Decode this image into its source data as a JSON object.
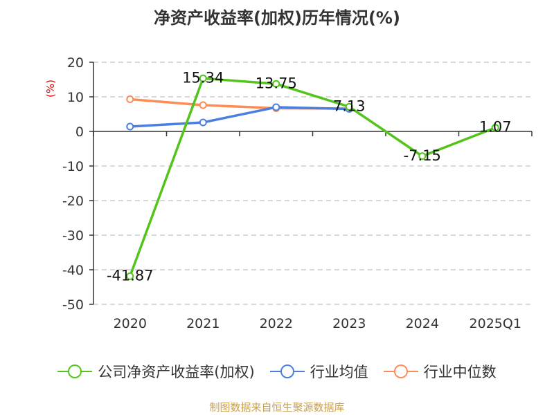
{
  "chart_data": {
    "type": "line",
    "title": "净资产收益率(加权)历年情况(%)",
    "ylabel": "(%)",
    "xlabel": "",
    "categories": [
      "2020",
      "2021",
      "2022",
      "2023",
      "2024",
      "2025Q1"
    ],
    "ylim": [
      -50,
      20
    ],
    "yticks": [
      20,
      10,
      0,
      -10,
      -20,
      -30,
      -40,
      -50
    ],
    "grid": true,
    "legend_position": "bottom",
    "series": [
      {
        "name": "公司净资产收益率(加权)",
        "color": "#52c41a",
        "values": [
          -41.87,
          15.34,
          13.75,
          7.13,
          -7.15,
          1.07
        ],
        "labels": [
          "-41.87",
          "15.34",
          "13.75",
          "7.13",
          "-7.15",
          "1.07"
        ]
      },
      {
        "name": "行业均值",
        "color": "#4a7fe0",
        "values": [
          1.4,
          2.6,
          7.0,
          6.5,
          null,
          null
        ]
      },
      {
        "name": "行业中位数",
        "color": "#ff8c55",
        "values": [
          9.3,
          7.6,
          6.7,
          6.6,
          null,
          null
        ]
      }
    ]
  },
  "source": "制图数据来自恒生聚源数据库"
}
